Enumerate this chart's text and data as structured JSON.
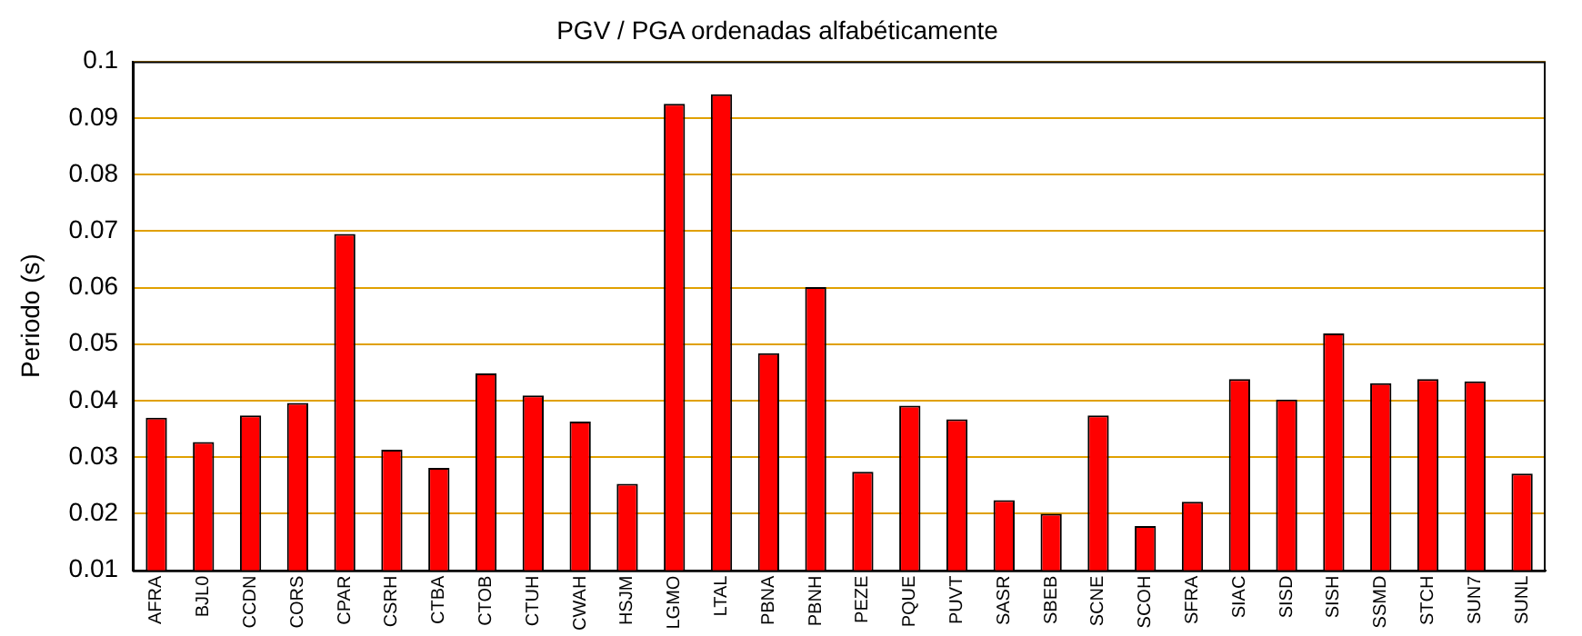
{
  "chart_data": {
    "type": "bar",
    "title": "PGV / PGA ordenadas alfabéticamente",
    "ylabel": "Periodo (s)",
    "categories": [
      "AFRA",
      "BJL0",
      "CCDN",
      "CORS",
      "CPAR",
      "CSRH",
      "CTBA",
      "CTOB",
      "CTUH",
      "CWAH",
      "HSJM",
      "LGMO",
      "LTAL",
      "PBNA",
      "PBNH",
      "PEZE",
      "PQUE",
      "PUVT",
      "SASR",
      "SBEB",
      "SCNE",
      "SCOH",
      "SFRA",
      "SIAC",
      "SISD",
      "SISH",
      "SSMD",
      "STCH",
      "SUN7",
      "SUNL"
    ],
    "values": [
      0.037,
      0.0327,
      0.0374,
      0.0396,
      0.0695,
      0.0313,
      0.0281,
      0.0448,
      0.0409,
      0.0363,
      0.0253,
      0.0925,
      0.0942,
      0.0484,
      0.0601,
      0.0274,
      0.0391,
      0.0367,
      0.0224,
      0.02,
      0.0374,
      0.0178,
      0.0221,
      0.0438,
      0.0402,
      0.0519,
      0.0431,
      0.0438,
      0.0434,
      0.0271
    ],
    "color": "#ff0000",
    "ylim": [
      0.01,
      0.1
    ],
    "yticks": [
      0.01,
      0.02,
      0.03,
      0.04,
      0.05,
      0.06,
      0.07,
      0.08,
      0.09,
      0.1
    ],
    "grid": "y",
    "legend": false
  }
}
